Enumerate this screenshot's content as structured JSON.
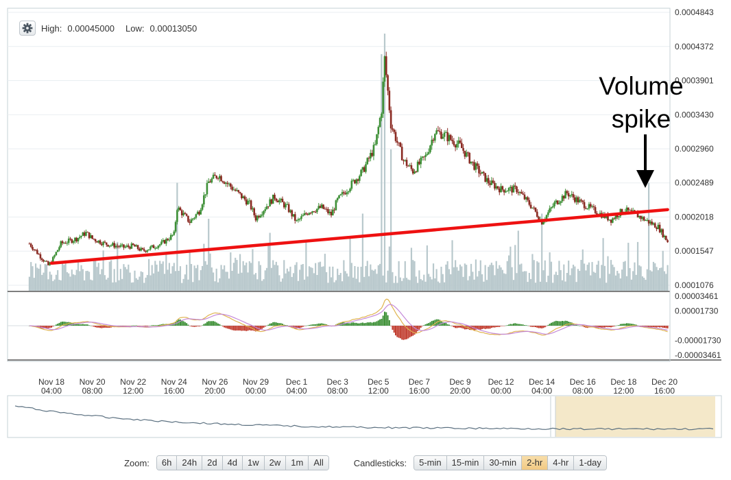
{
  "header": {
    "high_label": "High:",
    "high_value": "0.00045000",
    "low_label": "Low:",
    "low_value": "0.00013050"
  },
  "toolbar": {
    "zoom_label": "Zoom:",
    "zoom_options": [
      "6h",
      "24h",
      "2d",
      "4d",
      "1w",
      "2w",
      "1m",
      "All"
    ],
    "candles_label": "Candlesticks:",
    "candle_options": [
      "5-min",
      "15-min",
      "30-min",
      "2-hr",
      "4-hr",
      "1-day"
    ],
    "active_candle": "2-hr"
  },
  "annotation": {
    "line1": "Volume",
    "line2": "spike"
  },
  "colors": {
    "up": "#3c8f35",
    "down": "#8a2a22",
    "volume": "#b8c8cc",
    "trendline": "#ee1111",
    "macd_fast": "#e0b450",
    "macd_signal": "#c488d8",
    "nav_highlight": "#f4e8c9"
  },
  "chart_data": {
    "type": "candlestick",
    "price_axis_ticks": [
      "0.0004843",
      "0.0004372",
      "0.0003901",
      "0.0003430",
      "0.0002960",
      "0.0002489",
      "0.0002018",
      "0.0001547",
      "0.0001076"
    ],
    "price_ylim": [
      0.0001076,
      0.0004843
    ],
    "macd_axis_ticks": [
      "0.00003461",
      "0.00001730",
      "-0.00001730",
      "-0.00003461"
    ],
    "macd_ylim": [
      -3.461e-05,
      3.461e-05
    ],
    "x_ticks": [
      {
        "date": "Nov 18",
        "time": "04:00"
      },
      {
        "date": "Nov 20",
        "time": "08:00"
      },
      {
        "date": "Nov 22",
        "time": "12:00"
      },
      {
        "date": "Nov 24",
        "time": "16:00"
      },
      {
        "date": "Nov 26",
        "time": "20:00"
      },
      {
        "date": "Nov 29",
        "time": "00:00"
      },
      {
        "date": "Dec 1",
        "time": "04:00"
      },
      {
        "date": "Dec 3",
        "time": "08:00"
      },
      {
        "date": "Dec 5",
        "time": "12:00"
      },
      {
        "date": "Dec 7",
        "time": "16:00"
      },
      {
        "date": "Dec 9",
        "time": "20:00"
      },
      {
        "date": "Dec 12",
        "time": "00:00"
      },
      {
        "date": "Dec 14",
        "time": "04:00"
      },
      {
        "date": "Dec 16",
        "time": "08:00"
      },
      {
        "date": "Dec 18",
        "time": "12:00"
      },
      {
        "date": "Dec 20",
        "time": "16:00"
      }
    ],
    "price_path": [
      [
        "Nov 17 00:00",
        0.000165
      ],
      [
        "Nov 17 12:00",
        0.00015
      ],
      [
        "Nov 18 00:00",
        0.000135
      ],
      [
        "Nov 18 04:00",
        0.00014
      ],
      [
        "Nov 18 16:00",
        0.000165
      ],
      [
        "Nov 19 12:00",
        0.000172
      ],
      [
        "Nov 20 00:00",
        0.00018
      ],
      [
        "Nov 20 08:00",
        0.000172
      ],
      [
        "Nov 21 00:00",
        0.000165
      ],
      [
        "Nov 22 00:00",
        0.00016
      ],
      [
        "Nov 22 12:00",
        0.000162
      ],
      [
        "Nov 23 00:00",
        0.000155
      ],
      [
        "Nov 24 00:00",
        0.000165
      ],
      [
        "Nov 24 16:00",
        0.000178
      ],
      [
        "Nov 24 20:00",
        0.000215
      ],
      [
        "Nov 25 12:00",
        0.000195
      ],
      [
        "Nov 26 00:00",
        0.00021
      ],
      [
        "Nov 26 12:00",
        0.00025
      ],
      [
        "Nov 27 00:00",
        0.00026
      ],
      [
        "Nov 27 20:00",
        0.00024
      ],
      [
        "Nov 28 16:00",
        0.00022
      ],
      [
        "Nov 29 00:00",
        0.0002
      ],
      [
        "Nov 30 00:00",
        0.00023
      ],
      [
        "Nov 30 16:00",
        0.000215
      ],
      [
        "Dec 1 04:00",
        0.000195
      ],
      [
        "Dec 1 20:00",
        0.00021
      ],
      [
        "Dec 2 12:00",
        0.000215
      ],
      [
        "Dec 3 00:00",
        0.000205
      ],
      [
        "Dec 3 08:00",
        0.000225
      ],
      [
        "Dec 4 00:00",
        0.000245
      ],
      [
        "Dec 4 16:00",
        0.000265
      ],
      [
        "Dec 5 08:00",
        0.0003
      ],
      [
        "Dec 5 16:00",
        0.00035
      ],
      [
        "Dec 5 20:00",
        0.00042
      ],
      [
        "Dec 6 04:00",
        0.00033
      ],
      [
        "Dec 6 20:00",
        0.00028
      ],
      [
        "Dec 7 08:00",
        0.000265
      ],
      [
        "Dec 8 00:00",
        0.000285
      ],
      [
        "Dec 8 12:00",
        0.00032
      ],
      [
        "Dec 9 00:00",
        0.000315
      ],
      [
        "Dec 9 20:00",
        0.0003
      ],
      [
        "Dec 10 12:00",
        0.000275
      ],
      [
        "Dec 11 08:00",
        0.00025
      ],
      [
        "Dec 12 00:00",
        0.00024
      ],
      [
        "Dec 12 20:00",
        0.00024
      ],
      [
        "Dec 13 16:00",
        0.000215
      ],
      [
        "Dec 14 04:00",
        0.000195
      ],
      [
        "Dec 14 20:00",
        0.00022
      ],
      [
        "Dec 15 12:00",
        0.000235
      ],
      [
        "Dec 16 08:00",
        0.00022
      ],
      [
        "Dec 17 00:00",
        0.00021
      ],
      [
        "Dec 17 20:00",
        0.000198
      ],
      [
        "Dec 18 12:00",
        0.000212
      ],
      [
        "Dec 19 04:00",
        0.000205
      ],
      [
        "Dec 19 20:00",
        0.000195
      ],
      [
        "Dec 20 08:00",
        0.000188
      ],
      [
        "Dec 20 20:00",
        0.000168
      ]
    ],
    "trendline": [
      [
        "Nov 18 04:00",
        0.000138
      ],
      [
        "Dec 20 20:00",
        0.000212
      ]
    ],
    "volume_spikes": [
      [
        "Nov 24 20:00",
        0.42
      ],
      [
        "Nov 26 12:00",
        0.28
      ],
      [
        "Dec 4 16:00",
        0.3
      ],
      [
        "Dec 5 16:00",
        0.92
      ],
      [
        "Dec 5 20:00",
        1.0
      ],
      [
        "Dec 6 04:00",
        0.55
      ],
      [
        "Dec 14 04:00",
        0.3
      ],
      [
        "Dec 19 20:00",
        0.42
      ]
    ]
  }
}
